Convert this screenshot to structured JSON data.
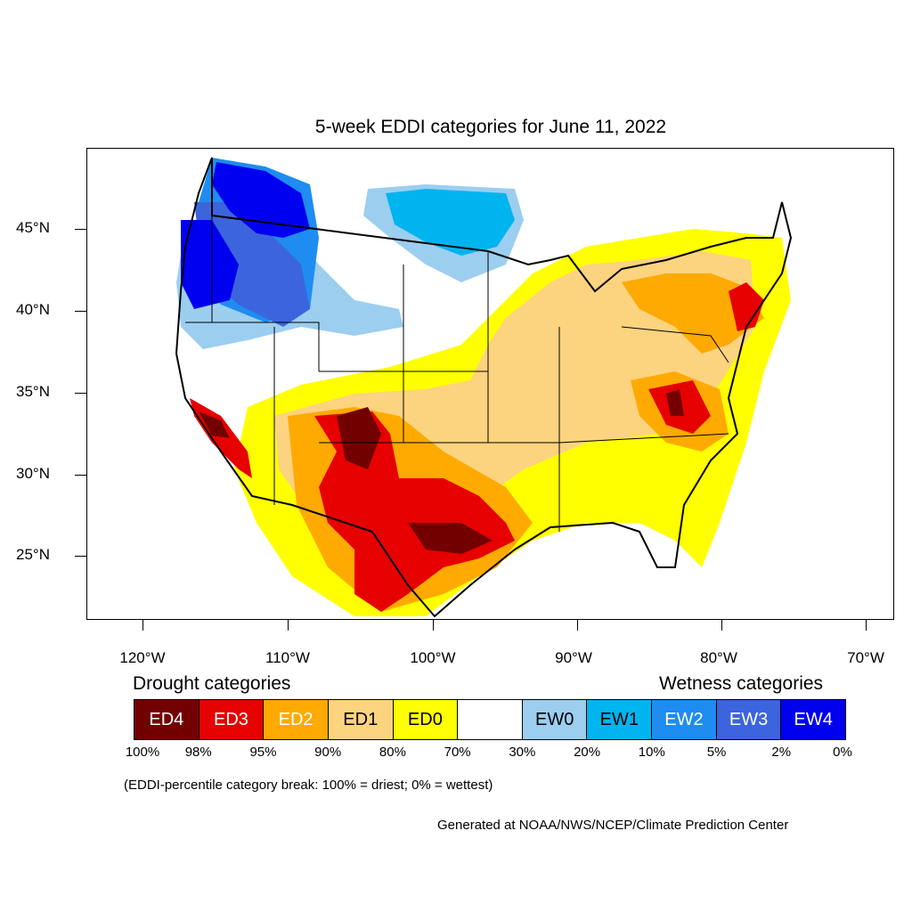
{
  "title": "5-week EDDI categories for June 11, 2022",
  "latitude_labels": [
    "45°N",
    "40°N",
    "35°N",
    "30°N",
    "25°N"
  ],
  "longitude_labels": [
    "120°W",
    "110°W",
    "100°W",
    "90°W",
    "80°W",
    "70°W"
  ],
  "legend": {
    "drought_heading": "Drought categories",
    "wetness_heading": "Wetness categories",
    "categories": [
      {
        "label": "ED4",
        "color": "#730000",
        "text_color": "#ffffff"
      },
      {
        "label": "ED3",
        "color": "#e60000",
        "text_color": "#ffffff"
      },
      {
        "label": "ED2",
        "color": "#ffaa00",
        "text_color": "#ffffff"
      },
      {
        "label": "ED1",
        "color": "#fcd37f",
        "text_color": "#000000"
      },
      {
        "label": "ED0",
        "color": "#ffff00",
        "text_color": "#000000"
      },
      {
        "label": "",
        "color": "#ffffff",
        "text_color": "#000000"
      },
      {
        "label": "EW0",
        "color": "#9ccef0",
        "text_color": "#000000"
      },
      {
        "label": "EW1",
        "color": "#00b4f0",
        "text_color": "#000000"
      },
      {
        "label": "EW2",
        "color": "#1e8cf0",
        "text_color": "#ffffff"
      },
      {
        "label": "EW3",
        "color": "#3c64dc",
        "text_color": "#ffffff"
      },
      {
        "label": "EW4",
        "color": "#0000f0",
        "text_color": "#ffffff"
      }
    ],
    "percentile_breaks": [
      "100%",
      "98%",
      "95%",
      "90%",
      "80%",
      "70%",
      "30%",
      "20%",
      "10%",
      "5%",
      "2%",
      "0%"
    ]
  },
  "note": "(EDDI-percentile category break: 100% = driest; 0% = wettest)",
  "credit": "Generated at NOAA/NWS/NCEP/Climate Prediction Center"
}
